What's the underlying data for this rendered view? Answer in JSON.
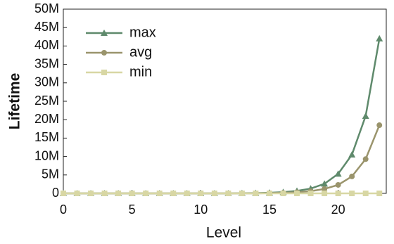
{
  "chart_data": {
    "type": "line",
    "x_label": "Level",
    "y_label": "Lifetime",
    "x": [
      0,
      1,
      2,
      3,
      4,
      5,
      6,
      7,
      8,
      9,
      10,
      11,
      12,
      13,
      14,
      15,
      16,
      17,
      18,
      19,
      20,
      21,
      22,
      23
    ],
    "series": [
      {
        "name": "max",
        "color": "#5f8a6c",
        "marker": "triangle",
        "values": [
          0,
          0,
          0,
          0,
          0,
          0,
          0,
          0,
          0,
          0,
          0,
          0,
          0,
          50000,
          80000,
          160000,
          330000,
          660000,
          1300000,
          2600000,
          5300000,
          10500000,
          21000000,
          42000000
        ]
      },
      {
        "name": "avg",
        "color": "#9a946c",
        "marker": "circle",
        "values": [
          0,
          0,
          0,
          0,
          0,
          0,
          0,
          0,
          0,
          0,
          0,
          0,
          0,
          0,
          0,
          70000,
          150000,
          300000,
          600000,
          1200000,
          2300000,
          4600000,
          9300000,
          18500000
        ]
      },
      {
        "name": "min",
        "color": "#d8d7a4",
        "marker": "square",
        "values": [
          0,
          0,
          0,
          0,
          0,
          0,
          0,
          0,
          0,
          0,
          0,
          0,
          0,
          0,
          0,
          0,
          0,
          0,
          0,
          0,
          0,
          0,
          0,
          0
        ]
      }
    ],
    "xlim": [
      0,
      23.5
    ],
    "ylim": [
      0,
      50000000
    ],
    "xticks": [
      0,
      5,
      10,
      15,
      20
    ],
    "yticks": [
      {
        "value": 0,
        "label": "0"
      },
      {
        "value": 5000000,
        "label": "5M"
      },
      {
        "value": 10000000,
        "label": "10M"
      },
      {
        "value": 15000000,
        "label": "15M"
      },
      {
        "value": 20000000,
        "label": "20M"
      },
      {
        "value": 25000000,
        "label": "25M"
      },
      {
        "value": 30000000,
        "label": "30M"
      },
      {
        "value": 35000000,
        "label": "35M"
      },
      {
        "value": 40000000,
        "label": "40M"
      },
      {
        "value": 45000000,
        "label": "45M"
      },
      {
        "value": 50000000,
        "label": "50M"
      }
    ],
    "legend": "upper left"
  }
}
